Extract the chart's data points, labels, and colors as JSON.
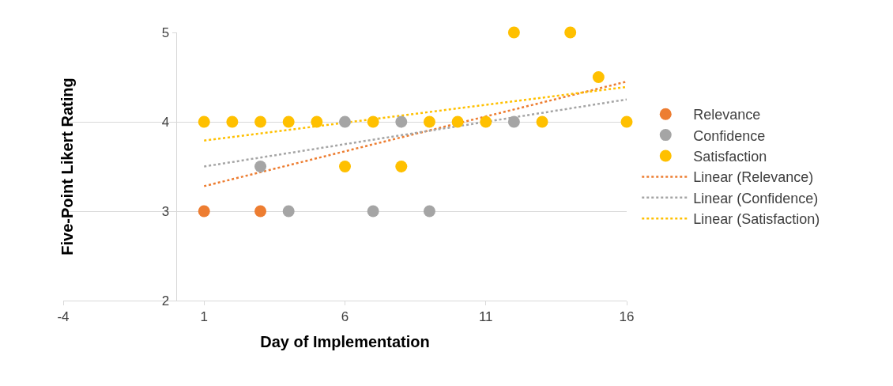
{
  "chart_data": {
    "type": "scatter",
    "xlabel": "Day of Implementation",
    "ylabel": "Five-Point Likert Rating",
    "xlim": [
      -4,
      16
    ],
    "xticks": [
      -4,
      1,
      6,
      11,
      16
    ],
    "ylim": [
      2,
      5
    ],
    "yticks": [
      2,
      3,
      4,
      5
    ],
    "grid": "y",
    "legend": "right",
    "marker": "circle",
    "series": [
      {
        "name": "Relevance",
        "color": "#ed7d31",
        "x": [
          1,
          3
        ],
        "values": [
          3,
          3
        ]
      },
      {
        "name": "Confidence",
        "color": "#a5a5a5",
        "x": [
          3,
          4,
          6,
          7,
          8,
          9,
          12
        ],
        "values": [
          3.5,
          3,
          4,
          3,
          4,
          3,
          4
        ]
      },
      {
        "name": "Satisfaction",
        "color": "#ffc000",
        "x": [
          1,
          2,
          3,
          4,
          5,
          6,
          7,
          8,
          9,
          10,
          11,
          12,
          13,
          14,
          15,
          16
        ],
        "values": [
          4,
          4,
          4,
          4,
          4,
          3.5,
          4,
          3.5,
          4,
          4,
          4,
          5,
          4,
          5,
          4.5,
          4
        ]
      },
      {
        "name": "Linear (Relevance)",
        "type": "line",
        "marker": "none",
        "line_style": "dotted",
        "color": "#ed7d31",
        "x": [
          1,
          16
        ],
        "values": [
          3.28,
          4.45
        ]
      },
      {
        "name": "Linear (Confidence)",
        "type": "line",
        "marker": "none",
        "line_style": "dotted",
        "color": "#a5a5a5",
        "x": [
          1,
          16
        ],
        "values": [
          3.5,
          4.25
        ]
      },
      {
        "name": "Linear (Satisfaction)",
        "type": "line",
        "marker": "none",
        "line_style": "dotted",
        "color": "#ffc000",
        "x": [
          1,
          16
        ],
        "values": [
          3.79,
          4.39
        ]
      }
    ]
  }
}
